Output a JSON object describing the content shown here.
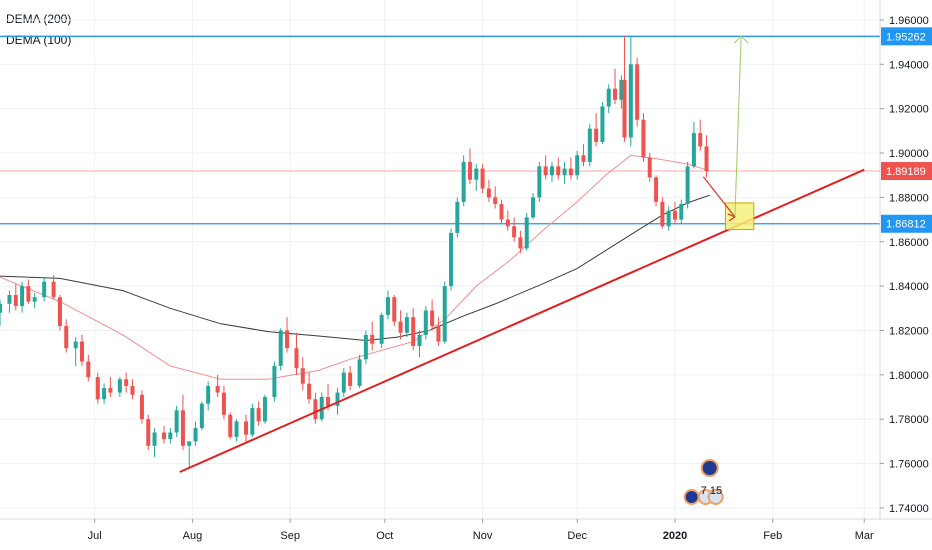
{
  "legend": [
    "DEMA (200)",
    "DEMA (100)"
  ],
  "colors": {
    "up": "#26a69a",
    "down": "#ef5350",
    "dema200": "#3a3a3a",
    "dema100": "#ef8f8f",
    "hline": "#2196f3",
    "trend": "#e02020",
    "price_line": "#f4a9a9",
    "arrow_down": "#e03030",
    "arrow_up": "#9ccc65",
    "target_box": "#f5f07a",
    "grid": "#eef0f3"
  },
  "chart_data": {
    "type": "candlestick",
    "ylim": [
      1.735,
      1.969
    ],
    "x_range": [
      "2019-06-01",
      "2020-03-06"
    ],
    "y_ticks": [
      "1.96000",
      "1.94000",
      "1.92000",
      "1.90000",
      "1.88000",
      "1.86000",
      "1.84000",
      "1.82000",
      "1.80000",
      "1.78000",
      "1.76000",
      "1.74000"
    ],
    "x_ticks": [
      {
        "label": "Jul",
        "date": "2019-07-01"
      },
      {
        "label": "Aug",
        "date": "2019-08-01"
      },
      {
        "label": "Sep",
        "date": "2019-09-01"
      },
      {
        "label": "Oct",
        "date": "2019-10-01"
      },
      {
        "label": "Nov",
        "date": "2019-11-01"
      },
      {
        "label": "Dec",
        "date": "2019-12-01"
      },
      {
        "label": "2020",
        "date": "2020-01-01",
        "bold": true
      },
      {
        "label": "Feb",
        "date": "2020-02-01"
      },
      {
        "label": "Mar",
        "date": "2020-03-01"
      }
    ],
    "horizontal_levels": [
      {
        "value": 1.95262,
        "label": "1.95262",
        "role": "resistance"
      },
      {
        "value": 1.86812,
        "label": "1.86812",
        "role": "support"
      }
    ],
    "last_price": {
      "value": 1.89189,
      "label": "1.89189"
    },
    "trendline": {
      "from": {
        "date": "2019-07-28",
        "price": 1.7562
      },
      "to": {
        "date": "2020-03-01",
        "price": 1.8925
      }
    },
    "projection": {
      "start": {
        "date": "2020-01-10",
        "price": 1.8893
      },
      "pivot": {
        "date": "2020-01-20",
        "price": 1.8712
      },
      "target": {
        "date": "2020-01-22",
        "price": 1.9527
      },
      "box": {
        "date_from": "2020-01-17",
        "date_to": "2020-01-26",
        "price_from": 1.8655,
        "price_to": 1.8775
      }
    },
    "dema200": [
      [
        "2019-06-01",
        1.8445
      ],
      [
        "2019-06-20",
        1.8435
      ],
      [
        "2019-07-10",
        1.838
      ],
      [
        "2019-07-25",
        1.83
      ],
      [
        "2019-08-10",
        1.823
      ],
      [
        "2019-08-25",
        1.8195
      ],
      [
        "2019-09-10",
        1.8175
      ],
      [
        "2019-09-25",
        1.8155
      ],
      [
        "2019-10-05",
        1.817
      ],
      [
        "2019-10-15",
        1.82
      ],
      [
        "2019-10-25",
        1.826
      ],
      [
        "2019-11-05",
        1.832
      ],
      [
        "2019-11-20",
        1.841
      ],
      [
        "2019-12-01",
        1.848
      ],
      [
        "2019-12-10",
        1.856
      ],
      [
        "2019-12-20",
        1.865
      ],
      [
        "2019-12-28",
        1.872
      ],
      [
        "2020-01-05",
        1.8775
      ],
      [
        "2020-01-12",
        1.881
      ]
    ],
    "dema100": [
      [
        "2019-06-01",
        1.844
      ],
      [
        "2019-06-20",
        1.833
      ],
      [
        "2019-07-10",
        1.818
      ],
      [
        "2019-07-25",
        1.804
      ],
      [
        "2019-08-10",
        1.798
      ],
      [
        "2019-08-25",
        1.798
      ],
      [
        "2019-09-10",
        1.802
      ],
      [
        "2019-09-20",
        1.807
      ],
      [
        "2019-09-30",
        1.811
      ],
      [
        "2019-10-10",
        1.815
      ],
      [
        "2019-10-20",
        1.825
      ],
      [
        "2019-10-30",
        1.84
      ],
      [
        "2019-11-10",
        1.852
      ],
      [
        "2019-11-20",
        1.865
      ],
      [
        "2019-12-01",
        1.878
      ],
      [
        "2019-12-10",
        1.89
      ],
      [
        "2019-12-18",
        1.899
      ],
      [
        "2019-12-26",
        1.8975
      ],
      [
        "2020-01-05",
        1.895
      ],
      [
        "2020-01-12",
        1.892
      ]
    ],
    "candles": [
      [
        "2019-06-01",
        1.828,
        1.834,
        1.822,
        1.832
      ],
      [
        "2019-06-04",
        1.832,
        1.838,
        1.828,
        1.836
      ],
      [
        "2019-06-06",
        1.836,
        1.841,
        1.829,
        1.831
      ],
      [
        "2019-06-08",
        1.831,
        1.842,
        1.828,
        1.84
      ],
      [
        "2019-06-10",
        1.84,
        1.843,
        1.832,
        1.833
      ],
      [
        "2019-06-12",
        1.833,
        1.837,
        1.83,
        1.835
      ],
      [
        "2019-06-15",
        1.835,
        1.844,
        1.833,
        1.842
      ],
      [
        "2019-06-18",
        1.842,
        1.845,
        1.834,
        1.835
      ],
      [
        "2019-06-20",
        1.835,
        1.836,
        1.82,
        1.822
      ],
      [
        "2019-06-22",
        1.822,
        1.825,
        1.81,
        1.812
      ],
      [
        "2019-06-25",
        1.812,
        1.817,
        1.804,
        1.815
      ],
      [
        "2019-06-27",
        1.815,
        1.818,
        1.804,
        1.806
      ],
      [
        "2019-06-29",
        1.806,
        1.809,
        1.797,
        1.799
      ],
      [
        "2019-07-02",
        1.799,
        1.801,
        1.787,
        1.789
      ],
      [
        "2019-07-04",
        1.789,
        1.796,
        1.787,
        1.794
      ],
      [
        "2019-07-06",
        1.794,
        1.799,
        1.79,
        1.792
      ],
      [
        "2019-07-09",
        1.792,
        1.799,
        1.79,
        1.798
      ],
      [
        "2019-07-11",
        1.798,
        1.801,
        1.792,
        1.795
      ],
      [
        "2019-07-13",
        1.795,
        1.798,
        1.789,
        1.791
      ],
      [
        "2019-07-16",
        1.791,
        1.793,
        1.778,
        1.78
      ],
      [
        "2019-07-18",
        1.78,
        1.782,
        1.766,
        1.768
      ],
      [
        "2019-07-20",
        1.768,
        1.776,
        1.763,
        1.774
      ],
      [
        "2019-07-23",
        1.774,
        1.777,
        1.769,
        1.771
      ],
      [
        "2019-07-25",
        1.771,
        1.776,
        1.769,
        1.774
      ],
      [
        "2019-07-27",
        1.774,
        1.786,
        1.772,
        1.784
      ],
      [
        "2019-07-29",
        1.784,
        1.791,
        1.766,
        1.768
      ],
      [
        "2019-07-31",
        1.768,
        1.77,
        1.758,
        1.77
      ],
      [
        "2019-08-02",
        1.77,
        1.779,
        1.768,
        1.776
      ],
      [
        "2019-08-04",
        1.776,
        1.788,
        1.775,
        1.787
      ],
      [
        "2019-08-06",
        1.787,
        1.797,
        1.784,
        1.795
      ],
      [
        "2019-08-09",
        1.795,
        1.8,
        1.79,
        1.792
      ],
      [
        "2019-08-11",
        1.792,
        1.795,
        1.78,
        1.782
      ],
      [
        "2019-08-13",
        1.782,
        1.783,
        1.771,
        1.772
      ],
      [
        "2019-08-15",
        1.772,
        1.78,
        1.77,
        1.779
      ],
      [
        "2019-08-18",
        1.779,
        1.782,
        1.77,
        1.773
      ],
      [
        "2019-08-20",
        1.773,
        1.787,
        1.772,
        1.785
      ],
      [
        "2019-08-22",
        1.785,
        1.788,
        1.777,
        1.779
      ],
      [
        "2019-08-24",
        1.779,
        1.791,
        1.778,
        1.79
      ],
      [
        "2019-08-27",
        1.79,
        1.806,
        1.788,
        1.804
      ],
      [
        "2019-08-29",
        1.804,
        1.821,
        1.802,
        1.82
      ],
      [
        "2019-08-31",
        1.82,
        1.826,
        1.81,
        1.812
      ],
      [
        "2019-09-03",
        1.812,
        1.819,
        1.8,
        1.803
      ],
      [
        "2019-09-05",
        1.803,
        1.808,
        1.793,
        1.796
      ],
      [
        "2019-09-07",
        1.796,
        1.801,
        1.787,
        1.789
      ],
      [
        "2019-09-09",
        1.789,
        1.792,
        1.778,
        1.78
      ],
      [
        "2019-09-11",
        1.78,
        1.792,
        1.779,
        1.79
      ],
      [
        "2019-09-13",
        1.79,
        1.796,
        1.784,
        1.786
      ],
      [
        "2019-09-16",
        1.786,
        1.794,
        1.782,
        1.792
      ],
      [
        "2019-09-18",
        1.792,
        1.803,
        1.79,
        1.801
      ],
      [
        "2019-09-20",
        1.801,
        1.804,
        1.793,
        1.795
      ],
      [
        "2019-09-23",
        1.795,
        1.809,
        1.794,
        1.807
      ],
      [
        "2019-09-25",
        1.807,
        1.82,
        1.805,
        1.818
      ],
      [
        "2019-09-27",
        1.818,
        1.824,
        1.811,
        1.814
      ],
      [
        "2019-09-30",
        1.814,
        1.828,
        1.812,
        1.827
      ],
      [
        "2019-10-02",
        1.827,
        1.838,
        1.825,
        1.835
      ],
      [
        "2019-10-04",
        1.835,
        1.836,
        1.822,
        1.824
      ],
      [
        "2019-10-06",
        1.824,
        1.829,
        1.816,
        1.819
      ],
      [
        "2019-10-08",
        1.819,
        1.828,
        1.817,
        1.826
      ],
      [
        "2019-10-10",
        1.826,
        1.83,
        1.811,
        1.813
      ],
      [
        "2019-10-12",
        1.813,
        1.82,
        1.808,
        1.818
      ],
      [
        "2019-10-14",
        1.818,
        1.831,
        1.816,
        1.829
      ],
      [
        "2019-10-16",
        1.829,
        1.834,
        1.82,
        1.822
      ],
      [
        "2019-10-18",
        1.822,
        1.826,
        1.813,
        1.815
      ],
      [
        "2019-10-20",
        1.815,
        1.842,
        1.814,
        1.84
      ],
      [
        "2019-10-22",
        1.84,
        1.866,
        1.838,
        1.864
      ],
      [
        "2019-10-24",
        1.864,
        1.88,
        1.862,
        1.878
      ],
      [
        "2019-10-26",
        1.878,
        1.899,
        1.876,
        1.896
      ],
      [
        "2019-10-28",
        1.896,
        1.902,
        1.886,
        1.888
      ],
      [
        "2019-10-30",
        1.888,
        1.895,
        1.883,
        1.893
      ],
      [
        "2019-11-01",
        1.893,
        1.895,
        1.882,
        1.884
      ],
      [
        "2019-11-03",
        1.884,
        1.888,
        1.878,
        1.88
      ],
      [
        "2019-11-05",
        1.88,
        1.885,
        1.875,
        1.877
      ],
      [
        "2019-11-07",
        1.877,
        1.879,
        1.868,
        1.87
      ],
      [
        "2019-11-09",
        1.87,
        1.874,
        1.865,
        1.867
      ],
      [
        "2019-11-11",
        1.867,
        1.871,
        1.86,
        1.862
      ],
      [
        "2019-11-13",
        1.862,
        1.865,
        1.855,
        1.857
      ],
      [
        "2019-11-15",
        1.857,
        1.873,
        1.856,
        1.871
      ],
      [
        "2019-11-17",
        1.871,
        1.882,
        1.87,
        1.88
      ],
      [
        "2019-11-19",
        1.88,
        1.896,
        1.878,
        1.894
      ],
      [
        "2019-11-21",
        1.894,
        1.899,
        1.888,
        1.89
      ],
      [
        "2019-11-23",
        1.89,
        1.896,
        1.887,
        1.894
      ],
      [
        "2019-11-25",
        1.894,
        1.898,
        1.888,
        1.89
      ],
      [
        "2019-11-27",
        1.89,
        1.896,
        1.886,
        1.893
      ],
      [
        "2019-11-29",
        1.893,
        1.898,
        1.888,
        1.89
      ],
      [
        "2019-12-01",
        1.89,
        1.901,
        1.888,
        1.899
      ],
      [
        "2019-12-03",
        1.899,
        1.904,
        1.894,
        1.896
      ],
      [
        "2019-12-05",
        1.896,
        1.913,
        1.894,
        1.911
      ],
      [
        "2019-12-07",
        1.911,
        1.918,
        1.903,
        1.905
      ],
      [
        "2019-12-09",
        1.905,
        1.923,
        1.904,
        1.921
      ],
      [
        "2019-12-11",
        1.921,
        1.931,
        1.918,
        1.929
      ],
      [
        "2019-12-13",
        1.929,
        1.938,
        1.922,
        1.924
      ],
      [
        "2019-12-15",
        1.924,
        1.935,
        1.92,
        1.933
      ],
      [
        "2019-12-16",
        1.933,
        1.953,
        1.905,
        1.907
      ],
      [
        "2019-12-18",
        1.907,
        1.953,
        1.903,
        1.94
      ],
      [
        "2019-12-20",
        1.94,
        1.943,
        1.912,
        1.915
      ],
      [
        "2019-12-22",
        1.915,
        1.918,
        1.896,
        1.898
      ],
      [
        "2019-12-24",
        1.898,
        1.9,
        1.887,
        1.889
      ],
      [
        "2019-12-26",
        1.889,
        1.89,
        1.876,
        1.878
      ],
      [
        "2019-12-28",
        1.878,
        1.88,
        1.866,
        1.867
      ],
      [
        "2019-12-30",
        1.867,
        1.876,
        1.865,
        1.874
      ],
      [
        "2020-01-01",
        1.874,
        1.878,
        1.868,
        1.87
      ],
      [
        "2020-01-03",
        1.87,
        1.879,
        1.868,
        1.877
      ],
      [
        "2020-01-05",
        1.877,
        1.896,
        1.875,
        1.894
      ],
      [
        "2020-01-07",
        1.894,
        1.914,
        1.893,
        1.909
      ],
      [
        "2020-01-09",
        1.909,
        1.915,
        1.901,
        1.903
      ],
      [
        "2020-01-11",
        1.903,
        1.908,
        1.889,
        1.8919
      ]
    ]
  },
  "annotations": {
    "event_label": "7 15"
  }
}
